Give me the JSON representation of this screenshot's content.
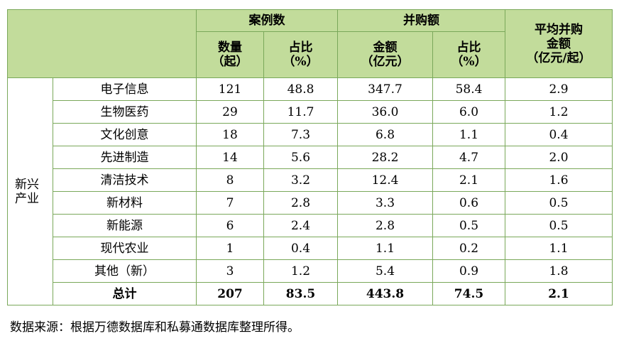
{
  "header": {
    "group1": "案例数",
    "group2": "并购额",
    "group3_line1": "平均并购",
    "group3_line2": "金额",
    "group3_line3": "（亿元/起）",
    "c1_line1": "数量",
    "c1_line2": "（起）",
    "c2_line1": "占比",
    "c2_line2": "（%）",
    "c3_line1": "金额",
    "c3_line2": "（亿元）",
    "c4_line1": "占比",
    "c4_line2": "（%）"
  },
  "group_label_line1": "新兴",
  "group_label_line2": "产业",
  "rows": [
    {
      "name": "电子信息",
      "count": "121",
      "count_pct": "48.8",
      "amount": "347.7",
      "amount_pct": "58.4",
      "avg": "2.9"
    },
    {
      "name": "生物医药",
      "count": "29",
      "count_pct": "11.7",
      "amount": "36.0",
      "amount_pct": "6.0",
      "avg": "1.2"
    },
    {
      "name": "文化创意",
      "count": "18",
      "count_pct": "7.3",
      "amount": "6.8",
      "amount_pct": "1.1",
      "avg": "0.4"
    },
    {
      "name": "先进制造",
      "count": "14",
      "count_pct": "5.6",
      "amount": "28.2",
      "amount_pct": "4.7",
      "avg": "2.0"
    },
    {
      "name": "清洁技术",
      "count": "8",
      "count_pct": "3.2",
      "amount": "12.4",
      "amount_pct": "2.1",
      "avg": "1.6"
    },
    {
      "name": "新材料",
      "count": "7",
      "count_pct": "2.8",
      "amount": "3.3",
      "amount_pct": "0.6",
      "avg": "0.5"
    },
    {
      "name": "新能源",
      "count": "6",
      "count_pct": "2.4",
      "amount": "2.8",
      "amount_pct": "0.5",
      "avg": "0.5"
    },
    {
      "name": "现代农业",
      "count": "1",
      "count_pct": "0.4",
      "amount": "1.1",
      "amount_pct": "0.2",
      "avg": "1.1"
    },
    {
      "name": "其他（新）",
      "count": "3",
      "count_pct": "1.2",
      "amount": "5.4",
      "amount_pct": "0.9",
      "avg": "1.8"
    }
  ],
  "total": {
    "name": "总计",
    "count": "207",
    "count_pct": "83.5",
    "amount": "443.8",
    "amount_pct": "74.5",
    "avg": "2.1"
  },
  "source_note": "数据来源：根据万德数据库和私募通数据库整理所得。",
  "colors": {
    "header_bg": "#c2dc9b",
    "border": "#7aa85a"
  }
}
